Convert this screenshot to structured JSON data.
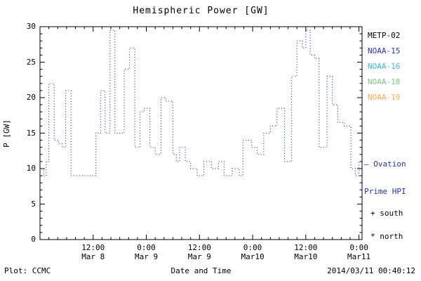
{
  "title": "Hemispheric Power [GW]",
  "legend": [
    {
      "label": "METP-02",
      "color": "#000000"
    },
    {
      "label": "NOAA-15",
      "color": "#2233cc"
    },
    {
      "label": "NOAA-16",
      "color": "#33bbdd"
    },
    {
      "label": "NOAA-18",
      "color": "#7ecb7e"
    },
    {
      "label": "NOAA-19",
      "color": "#ffaa44"
    }
  ],
  "annotations": {
    "ovation_line1": "— Ovation",
    "ovation_line2": "Prime HPI",
    "ovation_color": "#2233cc",
    "south": "+ south",
    "north": "* north"
  },
  "footer": {
    "left": "Plot: CCMC",
    "center": "Date and Time",
    "right": "2014/03/11 00:40:12"
  },
  "chart_data": {
    "type": "line",
    "subtype": "step-dotted",
    "title": "Hemispheric Power [GW]",
    "xlabel": "Date and Time",
    "ylabel": "P [GW]",
    "series_name": "Ovation Prime HPI",
    "line_color": "#2233cc",
    "grid": false,
    "legend_position": "right",
    "ylim": [
      0,
      30
    ],
    "yticks": [
      0,
      5,
      10,
      15,
      20,
      25,
      30
    ],
    "x_origin": "Mar 8 00:00",
    "xlim_hours": [
      0,
      72.7
    ],
    "xticks": [
      {
        "hour": 12,
        "time": "12:00",
        "date": "Mar 8"
      },
      {
        "hour": 24,
        "time": "0:00",
        "date": "Mar 9"
      },
      {
        "hour": 36,
        "time": "12:00",
        "date": "Mar 9"
      },
      {
        "hour": 48,
        "time": "0:00",
        "date": "Mar10"
      },
      {
        "hour": 60,
        "time": "12:00",
        "date": "Mar10"
      },
      {
        "hour": 72,
        "time": "0:00",
        "date": "Mar11"
      }
    ],
    "x_hours": [
      0,
      0.8,
      1.4,
      2.0,
      3.2,
      4.2,
      5.0,
      5.8,
      7.0,
      12.6,
      13.7,
      14.7,
      15.8,
      16.9,
      19.0,
      20.2,
      21.4,
      22.6,
      23.5,
      24.8,
      26.0,
      27.3,
      28.4,
      30.0,
      30.8,
      31.5,
      32.8,
      34.0,
      35.5,
      37.0,
      38.7,
      40.3,
      41.6,
      43.4,
      45.0,
      45.8,
      46.8,
      47.8,
      49.0,
      50.5,
      52.0,
      53.5,
      55.2,
      56.8,
      58.0,
      59.2,
      60.0,
      61.0,
      62.0,
      63.0,
      64.8,
      66.0,
      67.2,
      68.7,
      70.2,
      71.2,
      72.0
    ],
    "values": [
      10,
      9,
      11,
      22,
      14,
      13.5,
      13,
      21,
      9,
      15,
      21,
      15,
      29.5,
      15,
      24,
      27,
      13,
      18,
      18.5,
      13,
      12,
      20,
      19.5,
      12,
      11,
      13,
      11,
      10,
      9,
      11,
      10,
      11,
      9,
      10,
      9,
      14,
      14,
      13,
      12,
      15,
      16,
      18.5,
      11,
      23,
      28,
      27,
      29.5,
      26,
      25.5,
      13,
      23,
      19,
      16.5,
      16,
      10,
      9,
      11
    ]
  }
}
